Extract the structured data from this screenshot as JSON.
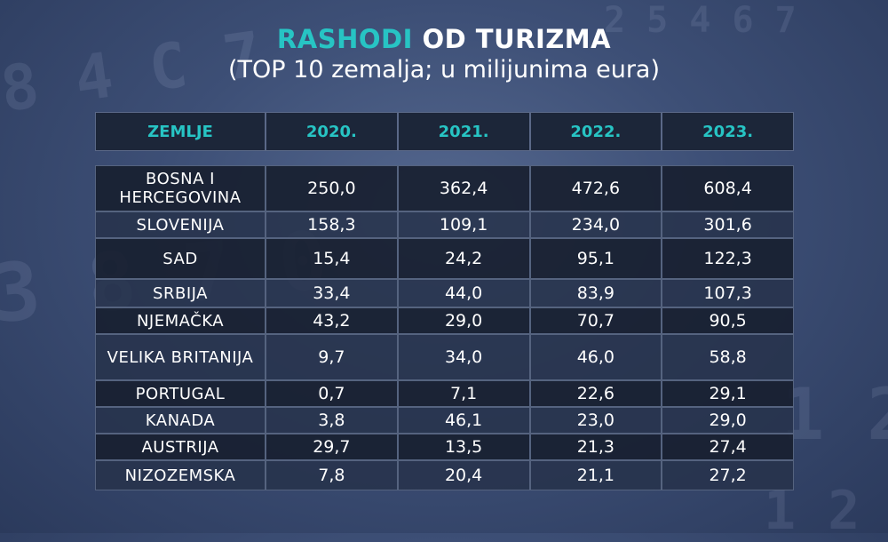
{
  "title": {
    "accent": "RASHODI",
    "rest": " OD TURIZMA",
    "subtitle": "(TOP 10 zemalja; u milijunima eura)"
  },
  "colors": {
    "accent": "#27c4c4",
    "text": "#ffffff",
    "row_dark": "#181f30",
    "row_light": "#26324a"
  },
  "table": {
    "headers": [
      "ZEMLJE",
      "2020.",
      "2021.",
      "2022.",
      "2023."
    ],
    "rows": [
      {
        "country": "BOSNA I HERCEGOVINA",
        "values": [
          "250,0",
          "362,4",
          "472,6",
          "608,4"
        ]
      },
      {
        "country": "SLOVENIJA",
        "values": [
          "158,3",
          "109,1",
          "234,0",
          "301,6"
        ]
      },
      {
        "country": "SAD",
        "values": [
          "15,4",
          "24,2",
          "95,1",
          "122,3"
        ]
      },
      {
        "country": "SRBIJA",
        "values": [
          "33,4",
          "44,0",
          "83,9",
          "107,3"
        ]
      },
      {
        "country": "NJEMAČKA",
        "values": [
          "43,2",
          "29,0",
          "70,7",
          "90,5"
        ]
      },
      {
        "country": "VELIKA BRITANIJA",
        "values": [
          "9,7",
          "34,0",
          "46,0",
          "58,8"
        ]
      },
      {
        "country": "PORTUGAL",
        "values": [
          "0,7",
          "7,1",
          "22,6",
          "29,1"
        ]
      },
      {
        "country": "KANADA",
        "values": [
          "3,8",
          "46,1",
          "23,0",
          "29,0"
        ]
      },
      {
        "country": "AUSTRIJA",
        "values": [
          "29,7",
          "13,5",
          "21,3",
          "27,4"
        ]
      },
      {
        "country": "NIZOZEMSKA",
        "values": [
          "7,8",
          "20,4",
          "21,1",
          "27,2"
        ]
      }
    ]
  },
  "chart_data": {
    "type": "table",
    "title": "RASHODI OD TURIZMA",
    "subtitle": "(TOP 10 zemalja; u milijunima eura)",
    "columns": [
      "ZEMLJE",
      "2020.",
      "2021.",
      "2022.",
      "2023."
    ],
    "categories": [
      "BOSNA I HERCEGOVINA",
      "SLOVENIJA",
      "SAD",
      "SRBIJA",
      "NJEMAČKA",
      "VELIKA BRITANIJA",
      "PORTUGAL",
      "KANADA",
      "AUSTRIJA",
      "NIZOZEMSKA"
    ],
    "series": [
      {
        "name": "2020.",
        "values": [
          250.0,
          158.3,
          15.4,
          33.4,
          43.2,
          9.7,
          0.7,
          3.8,
          29.7,
          7.8
        ]
      },
      {
        "name": "2021.",
        "values": [
          362.4,
          109.1,
          24.2,
          44.0,
          29.0,
          34.0,
          7.1,
          46.1,
          13.5,
          20.4
        ]
      },
      {
        "name": "2022.",
        "values": [
          472.6,
          234.0,
          95.1,
          83.9,
          70.7,
          46.0,
          22.6,
          23.0,
          21.3,
          21.1
        ]
      },
      {
        "name": "2023.",
        "values": [
          608.4,
          301.6,
          122.3,
          107.3,
          90.5,
          58.8,
          29.1,
          29.0,
          27.4,
          27.2
        ]
      }
    ]
  }
}
